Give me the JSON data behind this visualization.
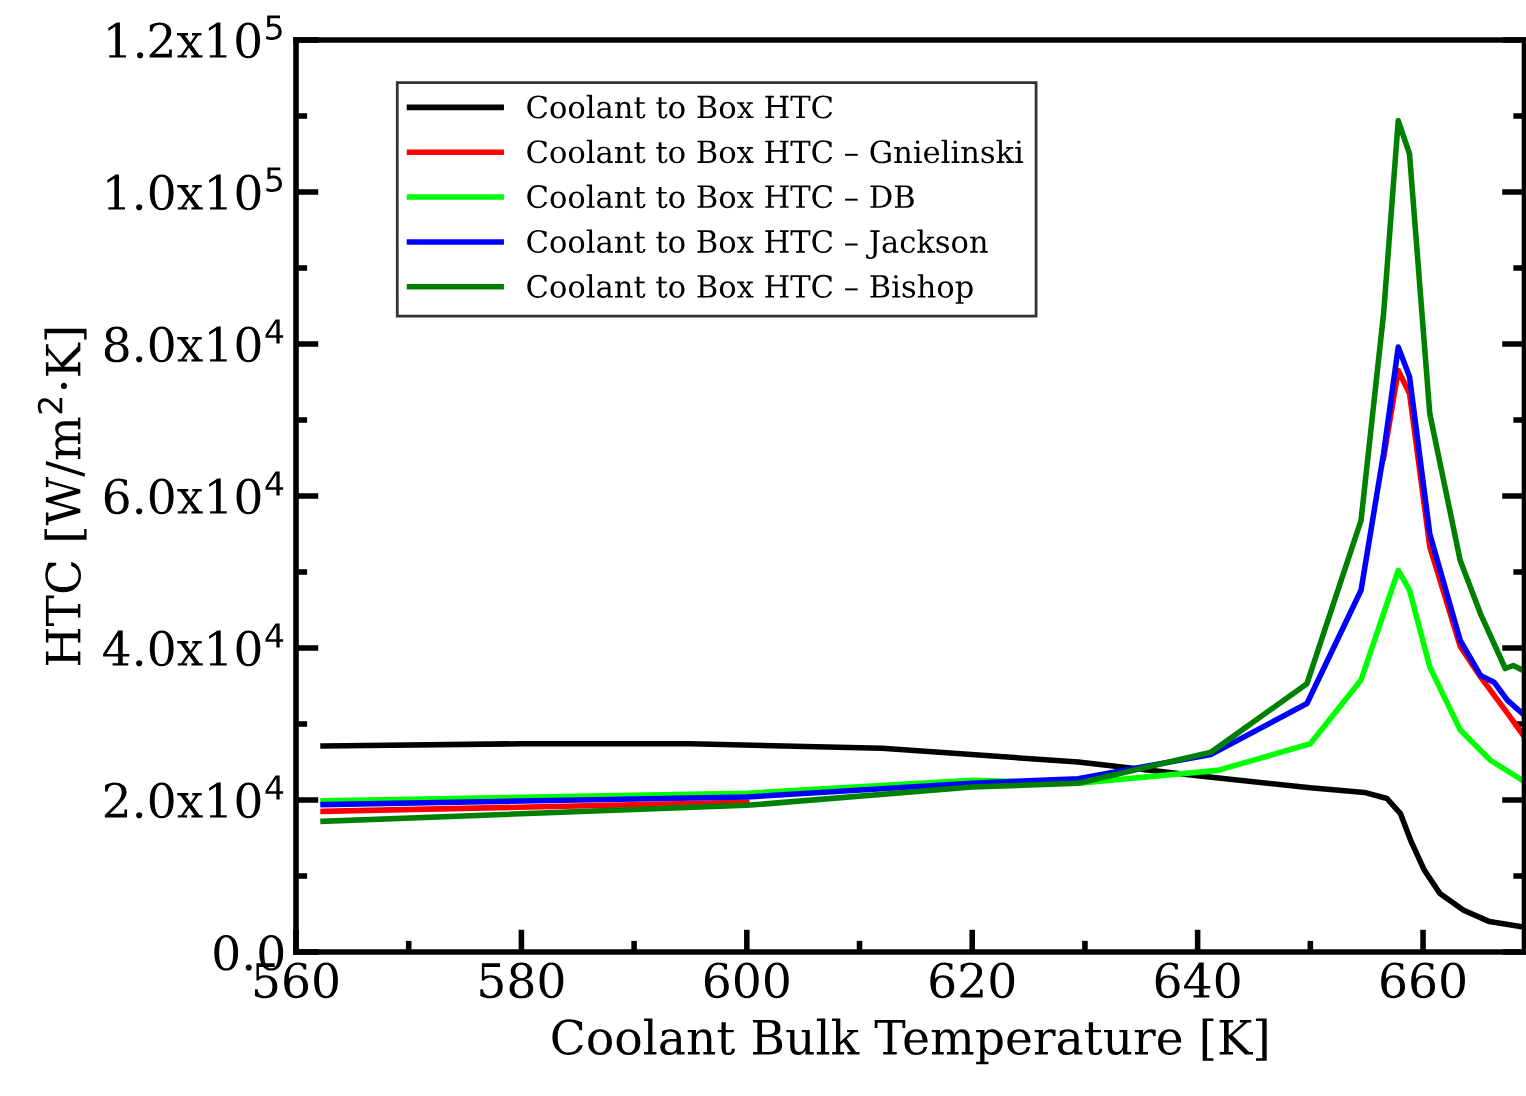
{
  "chart_data": {
    "type": "line",
    "xlabel": "Coolant Bulk Temperature [K]",
    "ylabel": "HTC [W/m$^{2}$·K]",
    "xlim": [
      560,
      669
    ],
    "ylim": [
      0,
      120000
    ],
    "xticks": [
      560,
      {
        "value": 570,
        "label": null
      },
      580,
      {
        "value": 590,
        "label": null
      },
      600,
      {
        "value": 610,
        "label": null
      },
      620,
      {
        "value": 630,
        "label": null
      },
      640,
      {
        "value": 650,
        "label": null
      },
      660
    ],
    "yticks": [
      {
        "value": 0,
        "label": "0.0"
      },
      {
        "value": 10000,
        "label": null
      },
      {
        "value": 20000,
        "label": "2.0x10$^{4}$"
      },
      {
        "value": 30000,
        "label": null
      },
      {
        "value": 40000,
        "label": "4.0x10$^{4}$"
      },
      {
        "value": 50000,
        "label": null
      },
      {
        "value": 60000,
        "label": "6.0x10$^{4}$"
      },
      {
        "value": 70000,
        "label": null
      },
      {
        "value": 80000,
        "label": "8.0x10$^{4}$"
      },
      {
        "value": 90000,
        "label": null
      },
      {
        "value": 100000,
        "label": "1.0x10$^{5}$"
      },
      {
        "value": 110000,
        "label": null
      },
      {
        "value": 120000,
        "label": "1.2x10$^{5}$"
      }
    ],
    "legend": "top left",
    "grid": false,
    "marker": "none",
    "line_style": "solid",
    "series": [
      {
        "name": "Coolant to Box HTC",
        "color": "#000000",
        "x": [
          562.4,
          580,
          595,
          612,
          629.4,
          640,
          650,
          654.8,
          656.8,
          658,
          658.9,
          660.1,
          661.5,
          663.6,
          665.9,
          668.8
        ],
        "values": [
          27100,
          27400,
          27400,
          26800,
          25000,
          23200,
          21600,
          21000,
          20200,
          18200,
          14700,
          10800,
          7700,
          5500,
          4000,
          3300
        ]
      },
      {
        "name": "Coolant to Box HTC – Gnielinski",
        "color": "#ff0000",
        "x": [
          562.4,
          600,
          620,
          629.4,
          641.2,
          649.7,
          654.5,
          656.5,
          657.8,
          658.8,
          660.6,
          663.3,
          665.1,
          667.5,
          668.8
        ],
        "values": [
          18500,
          19700,
          null,
          null,
          null,
          null,
          null,
          65000,
          76500,
          73500,
          53300,
          40200,
          36200,
          31400,
          28700
        ]
      },
      {
        "name": "Coolant to Box HTC – DB",
        "color": "#00ff00",
        "x": [
          562.4,
          600,
          620,
          629.4,
          641.8,
          650,
          654.5,
          657.8,
          658.8,
          660.6,
          663.3,
          666,
          668.8
        ],
        "values": [
          19900,
          20900,
          22600,
          22200,
          23900,
          27400,
          35800,
          50200,
          47600,
          37500,
          29200,
          25200,
          22600
        ]
      },
      {
        "name": "Coolant to Box HTC – Jackson",
        "color": "#0000ff",
        "x": [
          562.4,
          600,
          620,
          629.4,
          641.2,
          649.7,
          654.5,
          656.5,
          657.8,
          658.8,
          660.6,
          663.3,
          665.1,
          666.3,
          667.5,
          668.8
        ],
        "values": [
          19400,
          20400,
          22200,
          22800,
          26000,
          32700,
          47600,
          65600,
          79600,
          75700,
          55000,
          41000,
          36400,
          35500,
          33100,
          31400
        ]
      },
      {
        "name": "Coolant to Box HTC – Bishop",
        "color": "#008000",
        "x": [
          562.4,
          600,
          620,
          629.4,
          641.2,
          649.7,
          654.5,
          656.5,
          657.8,
          658.8,
          660.6,
          663.3,
          665.1,
          667.3,
          668,
          668.8
        ],
        "values": [
          17200,
          19300,
          21700,
          22200,
          26300,
          35300,
          56800,
          84000,
          109400,
          105000,
          70800,
          51500,
          44500,
          37300,
          37700,
          37100
        ]
      }
    ]
  }
}
